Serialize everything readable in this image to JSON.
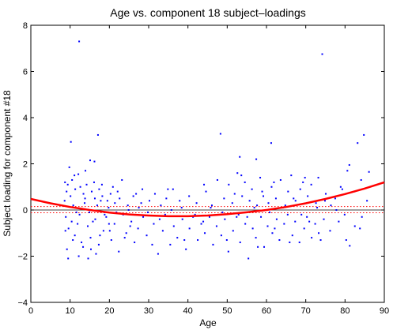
{
  "chart_data": {
    "type": "scatter",
    "title": "Age vs. component 18 subject–loadings",
    "xlabel": "Age",
    "ylabel": "Subject loading for component #18",
    "xlim": [
      0,
      90
    ],
    "ylim": [
      -4,
      8
    ],
    "xticks": [
      "0",
      "10",
      "20",
      "30",
      "40",
      "50",
      "60",
      "70",
      "80",
      "90"
    ],
    "yticks": [
      "−4",
      "−2",
      "0",
      "2",
      "4",
      "6",
      "8"
    ],
    "grid": false,
    "legend": "none",
    "colors": {
      "points": "#0000ff",
      "fit": "#ff0000",
      "zero_line": "#000000",
      "ci_line": "#ff0000"
    },
    "fit_curve": {
      "type": "quadratic",
      "x": [
        0,
        5,
        10,
        15,
        20,
        25,
        30,
        35,
        40,
        45,
        50,
        55,
        60,
        65,
        70,
        75,
        80,
        85,
        90
      ],
      "y": [
        0.48,
        0.29,
        0.13,
        0.0,
        -0.11,
        -0.19,
        -0.24,
        -0.27,
        -0.27,
        -0.24,
        -0.18,
        -0.1,
        0.0,
        0.13,
        0.29,
        0.48,
        0.69,
        0.93,
        1.2
      ]
    },
    "reference_lines": [
      {
        "y": 0,
        "style": "solid",
        "color": "#000000"
      },
      {
        "y": -0.12,
        "style": "dotted",
        "color": "#ff0000"
      },
      {
        "y": 0.15,
        "style": "dotted",
        "color": "#ff0000"
      }
    ],
    "points": [
      [
        12.3,
        7.3
      ],
      [
        74.2,
        6.75
      ],
      [
        17.1,
        3.25
      ],
      [
        48.3,
        3.3
      ],
      [
        84.8,
        3.25
      ],
      [
        61.2,
        2.9
      ],
      [
        83.2,
        2.9
      ],
      [
        10.2,
        2.95
      ],
      [
        15.1,
        2.15
      ],
      [
        16.2,
        2.1
      ],
      [
        81.1,
        1.95
      ],
      [
        53.2,
        2.3
      ],
      [
        57.4,
        2.2
      ],
      [
        86.1,
        1.65
      ],
      [
        9.8,
        1.85
      ],
      [
        12.1,
        1.55
      ],
      [
        8.7,
        1.2
      ],
      [
        9.4,
        1.1
      ],
      [
        10.5,
        1.3
      ],
      [
        11.3,
        0.9
      ],
      [
        12.6,
        1.0
      ],
      [
        13.4,
        0.7
      ],
      [
        14.2,
        1.1
      ],
      [
        15.5,
        0.8
      ],
      [
        16.3,
        0.5
      ],
      [
        17.4,
        0.9
      ],
      [
        18.2,
        0.6
      ],
      [
        19.5,
        0.4
      ],
      [
        20.3,
        0.7
      ],
      [
        21.4,
        0.3
      ],
      [
        22.6,
        0.5
      ],
      [
        23.2,
        1.3
      ],
      [
        24.7,
        0.2
      ],
      [
        26.1,
        0.6
      ],
      [
        27.5,
        0.1
      ],
      [
        28.4,
        0.9
      ],
      [
        30.2,
        0.4
      ],
      [
        31.6,
        0.7
      ],
      [
        33.1,
        0.2
      ],
      [
        34.5,
        0.5
      ],
      [
        36.2,
        0.9
      ],
      [
        38.4,
        0.1
      ],
      [
        40.3,
        0.6
      ],
      [
        42.2,
        0.3
      ],
      [
        44.6,
        0.8
      ],
      [
        46.1,
        0.2
      ],
      [
        47.5,
        1.3
      ],
      [
        49.2,
        0.5
      ],
      [
        50.4,
        1.1
      ],
      [
        51.3,
        0.3
      ],
      [
        52.6,
        1.6
      ],
      [
        53.8,
        0.6
      ],
      [
        54.5,
        1.2
      ],
      [
        55.7,
        0.4
      ],
      [
        56.3,
        0.9
      ],
      [
        57.6,
        0.2
      ],
      [
        58.4,
        1.4
      ],
      [
        59.2,
        0.6
      ],
      [
        60.5,
        0.3
      ],
      [
        61.3,
        1.0
      ],
      [
        62.4,
        0.5
      ],
      [
        63.6,
        1.3
      ],
      [
        64.2,
        0.1
      ],
      [
        65.5,
        0.8
      ],
      [
        66.3,
        1.5
      ],
      [
        67.4,
        0.4
      ],
      [
        68.6,
        0.9
      ],
      [
        69.3,
        1.2
      ],
      [
        70.5,
        0.6
      ],
      [
        71.4,
        1.1
      ],
      [
        72.6,
        0.3
      ],
      [
        73.2,
        1.4
      ],
      [
        75.1,
        0.7
      ],
      [
        76.4,
        0.2
      ],
      [
        77.5,
        0.5
      ],
      [
        79.3,
        0.9
      ],
      [
        80.6,
        1.7
      ],
      [
        82.4,
        0.8
      ],
      [
        84.1,
        1.3
      ],
      [
        85.6,
        0.4
      ],
      [
        8.9,
        -0.3
      ],
      [
        9.6,
        -0.8
      ],
      [
        10.4,
        -0.5
      ],
      [
        11.2,
        -1.1
      ],
      [
        12.4,
        -0.2
      ],
      [
        13.3,
        -1.6
      ],
      [
        14.5,
        -0.7
      ],
      [
        15.2,
        -1.2
      ],
      [
        16.4,
        -0.4
      ],
      [
        17.3,
        -1.5
      ],
      [
        18.5,
        -0.9
      ],
      [
        19.2,
        -0.3
      ],
      [
        20.5,
        -1.3
      ],
      [
        21.3,
        -0.6
      ],
      [
        22.4,
        -1.8
      ],
      [
        23.5,
        -0.2
      ],
      [
        24.3,
        -1.0
      ],
      [
        25.6,
        -0.5
      ],
      [
        26.4,
        -1.4
      ],
      [
        27.3,
        -0.8
      ],
      [
        28.6,
        -0.3
      ],
      [
        29.5,
        -1.1
      ],
      [
        31.3,
        -0.6
      ],
      [
        32.4,
        -1.9
      ],
      [
        33.6,
        -0.9
      ],
      [
        34.2,
        -0.2
      ],
      [
        35.5,
        -1.5
      ],
      [
        36.4,
        -0.7
      ],
      [
        37.3,
        -1.2
      ],
      [
        38.6,
        -0.4
      ],
      [
        39.5,
        -1.7
      ],
      [
        40.4,
        -0.8
      ],
      [
        41.3,
        -0.3
      ],
      [
        42.5,
        -1.3
      ],
      [
        43.4,
        -0.6
      ],
      [
        44.3,
        -1.0
      ],
      [
        45.5,
        -0.3
      ],
      [
        46.4,
        -1.5
      ],
      [
        47.3,
        -0.7
      ],
      [
        48.5,
        -1.1
      ],
      [
        49.4,
        -0.4
      ],
      [
        50.3,
        -1.8
      ],
      [
        51.5,
        -0.9
      ],
      [
        52.4,
        -0.3
      ],
      [
        53.3,
        -1.4
      ],
      [
        54.6,
        -0.6
      ],
      [
        55.4,
        -2.1
      ],
      [
        56.5,
        -0.8
      ],
      [
        57.3,
        -1.2
      ],
      [
        58.6,
        -0.3
      ],
      [
        59.4,
        -1.6
      ],
      [
        60.3,
        -0.7
      ],
      [
        61.5,
        -1.0
      ],
      [
        62.6,
        -0.4
      ],
      [
        63.3,
        -1.3
      ],
      [
        64.5,
        -0.6
      ],
      [
        65.4,
        -0.2
      ],
      [
        66.6,
        -1.1
      ],
      [
        67.3,
        -0.5
      ],
      [
        68.4,
        -1.4
      ],
      [
        69.6,
        -0.8
      ],
      [
        70.3,
        -0.3
      ],
      [
        71.5,
        -1.2
      ],
      [
        72.4,
        -0.6
      ],
      [
        73.3,
        -1.0
      ],
      [
        74.6,
        -0.4
      ],
      [
        76.2,
        -0.9
      ],
      [
        78.4,
        -0.5
      ],
      [
        80.3,
        -1.3
      ],
      [
        81.2,
        -1.55
      ],
      [
        82.5,
        -0.7
      ],
      [
        84.3,
        -0.3
      ],
      [
        9.2,
        -1.7
      ],
      [
        9.5,
        -2.1
      ],
      [
        12.2,
        -2.0
      ],
      [
        14.6,
        -2.1
      ],
      [
        16.6,
        -1.9
      ],
      [
        10.8,
        0.2
      ],
      [
        11.6,
        -0.1
      ],
      [
        13.7,
        0.3
      ],
      [
        14.9,
        -0.1
      ],
      [
        16.9,
        0.2
      ],
      [
        18.8,
        -0.2
      ],
      [
        19.8,
        0.1
      ],
      [
        21.8,
        -0.1
      ],
      [
        24.9,
        0.0
      ],
      [
        29.8,
        -0.1
      ],
      [
        35.8,
        0.0
      ],
      [
        41.8,
        -0.2
      ],
      [
        45.8,
        0.1
      ],
      [
        48.8,
        -0.1
      ],
      [
        52.9,
        -0.2
      ],
      [
        56.9,
        0.1
      ],
      [
        60.8,
        -0.1
      ],
      [
        64.8,
        0.2
      ],
      [
        68.9,
        -0.2
      ],
      [
        72.9,
        0.1
      ],
      [
        77.8,
        0.0
      ],
      [
        10.1,
        0.6
      ],
      [
        11.9,
        -0.6
      ],
      [
        13.8,
        0.5
      ],
      [
        15.8,
        -0.5
      ],
      [
        17.8,
        0.4
      ],
      [
        19.9,
        -0.6
      ],
      [
        22.1,
        0.8
      ],
      [
        25.3,
        -0.7
      ],
      [
        28.1,
        0.3
      ],
      [
        32.8,
        -0.4
      ],
      [
        37.9,
        0.4
      ],
      [
        43.9,
        -0.5
      ],
      [
        51.9,
        0.7
      ],
      [
        55.1,
        -0.3
      ],
      [
        58.9,
        0.8
      ],
      [
        62.1,
        -0.8
      ],
      [
        66.9,
        0.5
      ],
      [
        70.9,
        -0.5
      ],
      [
        74.9,
        0.4
      ],
      [
        79.9,
        -0.2
      ],
      [
        8.6,
        0.4
      ],
      [
        8.8,
        -0.9
      ],
      [
        9.1,
        0.8
      ],
      [
        10.7,
        -1.3
      ],
      [
        11.1,
        1.5
      ],
      [
        12.9,
        -1.4
      ],
      [
        13.9,
        1.7
      ],
      [
        15.3,
        -1.7
      ],
      [
        16.1,
        1.2
      ],
      [
        17.6,
        -1.1
      ],
      [
        18.1,
        1.1
      ],
      [
        20.1,
        -0.9
      ],
      [
        20.9,
        1.0
      ],
      [
        23.9,
        -1.2
      ],
      [
        26.8,
        0.7
      ],
      [
        30.9,
        -1.5
      ],
      [
        34.9,
        0.9
      ],
      [
        39.1,
        -1.3
      ],
      [
        44.1,
        1.1
      ],
      [
        49.9,
        -1.3
      ],
      [
        53.6,
        1.5
      ],
      [
        57.8,
        -1.6
      ],
      [
        61.9,
        1.2
      ],
      [
        65.9,
        -1.4
      ],
      [
        69.8,
        1.4
      ],
      [
        73.8,
        -1.3
      ],
      [
        78.9,
        1.0
      ],
      [
        83.8,
        -0.8
      ]
    ]
  }
}
